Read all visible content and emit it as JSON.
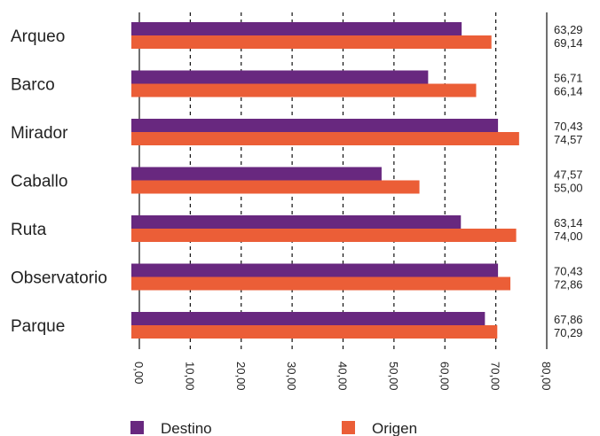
{
  "chart_data": {
    "type": "bar",
    "orientation": "horizontal",
    "categories": [
      "Arqueo",
      "Barco",
      "Mirador",
      "Caballo",
      "Ruta",
      "Observatorio",
      "Parque"
    ],
    "series": [
      {
        "name": "Destino",
        "color": "#68287f",
        "values": [
          63.29,
          56.71,
          70.43,
          47.57,
          63.14,
          70.43,
          67.86
        ],
        "value_labels": [
          "63,29",
          "56,71",
          "70,43",
          "47,57",
          "63,14",
          "70,43",
          "67,86"
        ]
      },
      {
        "name": "Origen",
        "color": "#eb5e37",
        "values": [
          69.14,
          66.14,
          74.57,
          55.0,
          74.0,
          72.86,
          70.29
        ],
        "value_labels": [
          "69,14",
          "66,14",
          "74,57",
          "55,00",
          "74,00",
          "72,86",
          "70,29"
        ]
      }
    ],
    "xlim": [
      0,
      80
    ],
    "ticks": [
      0,
      10,
      20,
      30,
      40,
      50,
      60,
      70,
      80
    ],
    "tick_labels": [
      "0,00",
      "10,00",
      "20,00",
      "30,00",
      "40,00",
      "50,00",
      "60,00",
      "70,00",
      "80,00"
    ],
    "grid": "vertical-dashed",
    "legend_position": "bottom"
  }
}
